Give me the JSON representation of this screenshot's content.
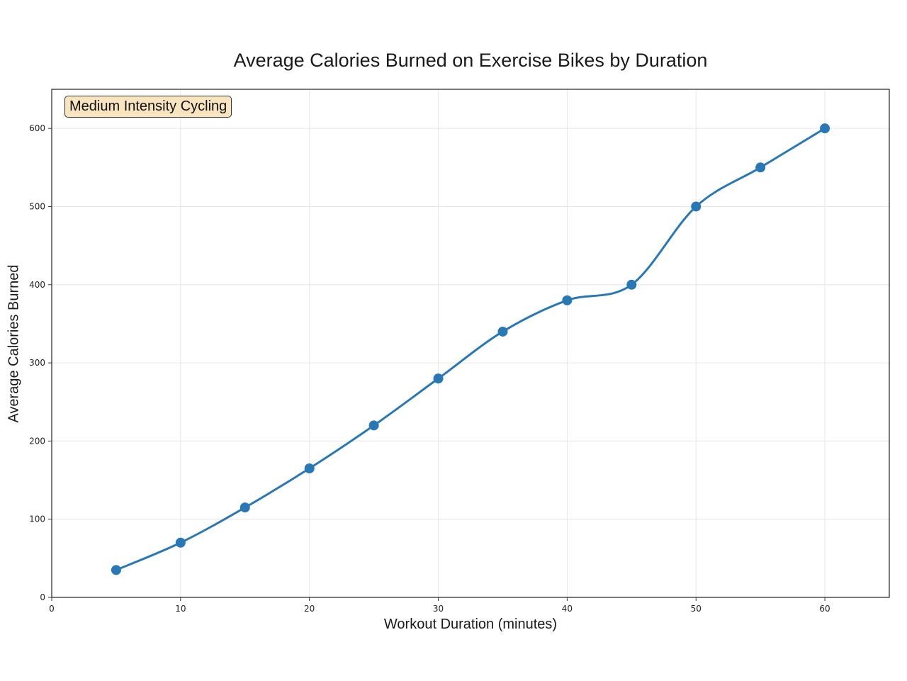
{
  "chart_data": {
    "type": "line",
    "title": "Average Calories Burned on Exercise Bikes by Duration",
    "xlabel": "Workout Duration (minutes)",
    "ylabel": "Average Calories Burned",
    "xlim": [
      0,
      65
    ],
    "ylim": [
      0,
      650
    ],
    "xticks": [
      0,
      10,
      20,
      30,
      40,
      50,
      60
    ],
    "yticks": [
      0,
      100,
      200,
      300,
      400,
      500,
      600
    ],
    "grid": true,
    "annotation": "Medium Intensity Cycling",
    "line_color": "#2878b5",
    "annotation_bg": "#f8e4bf",
    "series": [
      {
        "x": [
          5,
          10,
          15,
          20,
          25,
          30,
          35,
          40,
          45,
          50,
          55,
          60
        ],
        "values": [
          35,
          70,
          115,
          165,
          220,
          280,
          340,
          380,
          400,
          500,
          550,
          600
        ]
      }
    ]
  }
}
